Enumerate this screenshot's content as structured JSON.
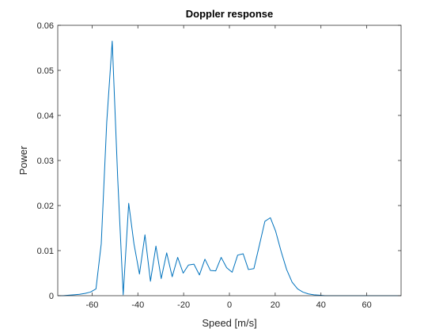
{
  "chart_data": {
    "type": "line",
    "title": "Doppler response",
    "xlabel": "Speed [m/s]",
    "ylabel": "Power",
    "xlim": [
      -75,
      75
    ],
    "ylim": [
      0,
      0.06
    ],
    "xticks": [
      -60,
      -40,
      -20,
      0,
      20,
      40,
      60
    ],
    "xtick_labels": [
      "-60",
      "-40",
      "-20",
      "0",
      "20",
      "40",
      "60"
    ],
    "yticks": [
      0,
      0.01,
      0.02,
      0.03,
      0.04,
      0.05,
      0.06
    ],
    "ytick_labels": [
      "0",
      "0.01",
      "0.02",
      "0.03",
      "0.04",
      "0.05",
      "0.06"
    ],
    "grid": false,
    "box": true,
    "series": [
      {
        "color": "#0072bd",
        "x": [
          -75,
          -72.6,
          -70.2,
          -67.9,
          -65.5,
          -63.1,
          -60.7,
          -58.3,
          -56,
          -53.6,
          -51.2,
          -48.8,
          -46.4,
          -44,
          -41.7,
          -39.3,
          -36.9,
          -34.5,
          -32.1,
          -29.8,
          -27.4,
          -25,
          -22.6,
          -20.2,
          -17.9,
          -15.5,
          -13.1,
          -10.7,
          -8.3,
          -6,
          -3.6,
          -1.2,
          1.2,
          3.6,
          6,
          8.3,
          10.7,
          13.1,
          15.5,
          17.9,
          20.2,
          22.6,
          25,
          27.4,
          29.8,
          32.1,
          34.5,
          36.9,
          39.3,
          41.7,
          44,
          46.4,
          48.8,
          51.2,
          53.6,
          56,
          58.3,
          60.7,
          63.1,
          65.5,
          67.9,
          70.2,
          72.6,
          75
        ],
        "y": [
          0,
          0,
          0.0001,
          0.0002,
          0.0003,
          0.0005,
          0.0008,
          0.0015,
          0.0115,
          0.0385,
          0.0565,
          0.026,
          0.0002,
          0.0205,
          0.0115,
          0.0048,
          0.0135,
          0.0032,
          0.011,
          0.0038,
          0.0095,
          0.0042,
          0.0085,
          0.005,
          0.0068,
          0.007,
          0.0046,
          0.0081,
          0.0056,
          0.0055,
          0.0085,
          0.0062,
          0.0052,
          0.009,
          0.0093,
          0.0058,
          0.006,
          0.0112,
          0.0165,
          0.0173,
          0.0143,
          0.0098,
          0.0058,
          0.003,
          0.0015,
          0.0008,
          0.0004,
          0.0002,
          0.0001,
          0,
          0,
          0,
          0,
          0,
          0,
          0,
          0,
          0,
          0,
          0,
          0,
          0,
          0,
          0
        ]
      }
    ]
  }
}
